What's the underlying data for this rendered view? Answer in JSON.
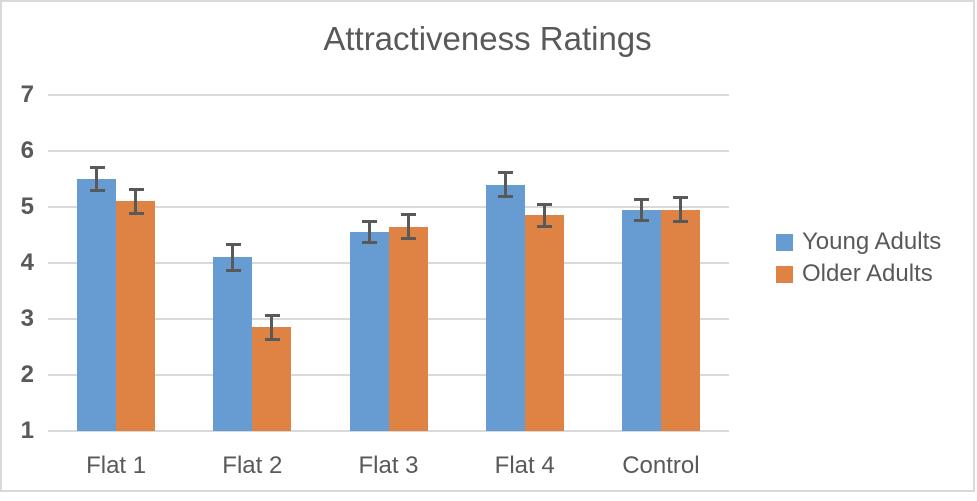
{
  "chart_data": {
    "type": "bar",
    "title": "Attractiveness Ratings",
    "categories": [
      "Flat 1",
      "Flat 2",
      "Flat 3",
      "Flat 4",
      "Control"
    ],
    "series": [
      {
        "name": "Young Adults",
        "color": "#669CD2",
        "values": [
          5.5,
          4.1,
          4.55,
          5.4,
          4.95
        ],
        "errors": [
          0.21,
          0.24,
          0.2,
          0.22,
          0.2
        ]
      },
      {
        "name": "Older Adults",
        "color": "#DE8344",
        "values": [
          5.1,
          2.85,
          4.65,
          4.85,
          4.95
        ],
        "errors": [
          0.22,
          0.22,
          0.22,
          0.2,
          0.22
        ]
      }
    ],
    "xlabel": "",
    "ylabel": "",
    "ylim": [
      1,
      7
    ],
    "y_ticks": [
      "7",
      "6",
      "5",
      "4",
      "3",
      "2",
      "1"
    ],
    "grid": true,
    "legend_position": "right",
    "colors": {
      "text": "#595959",
      "gridline": "#D9D9D9",
      "error_bar": "#595959",
      "frame_border": "#D9D9D9",
      "background": "#FFFFFF"
    }
  }
}
